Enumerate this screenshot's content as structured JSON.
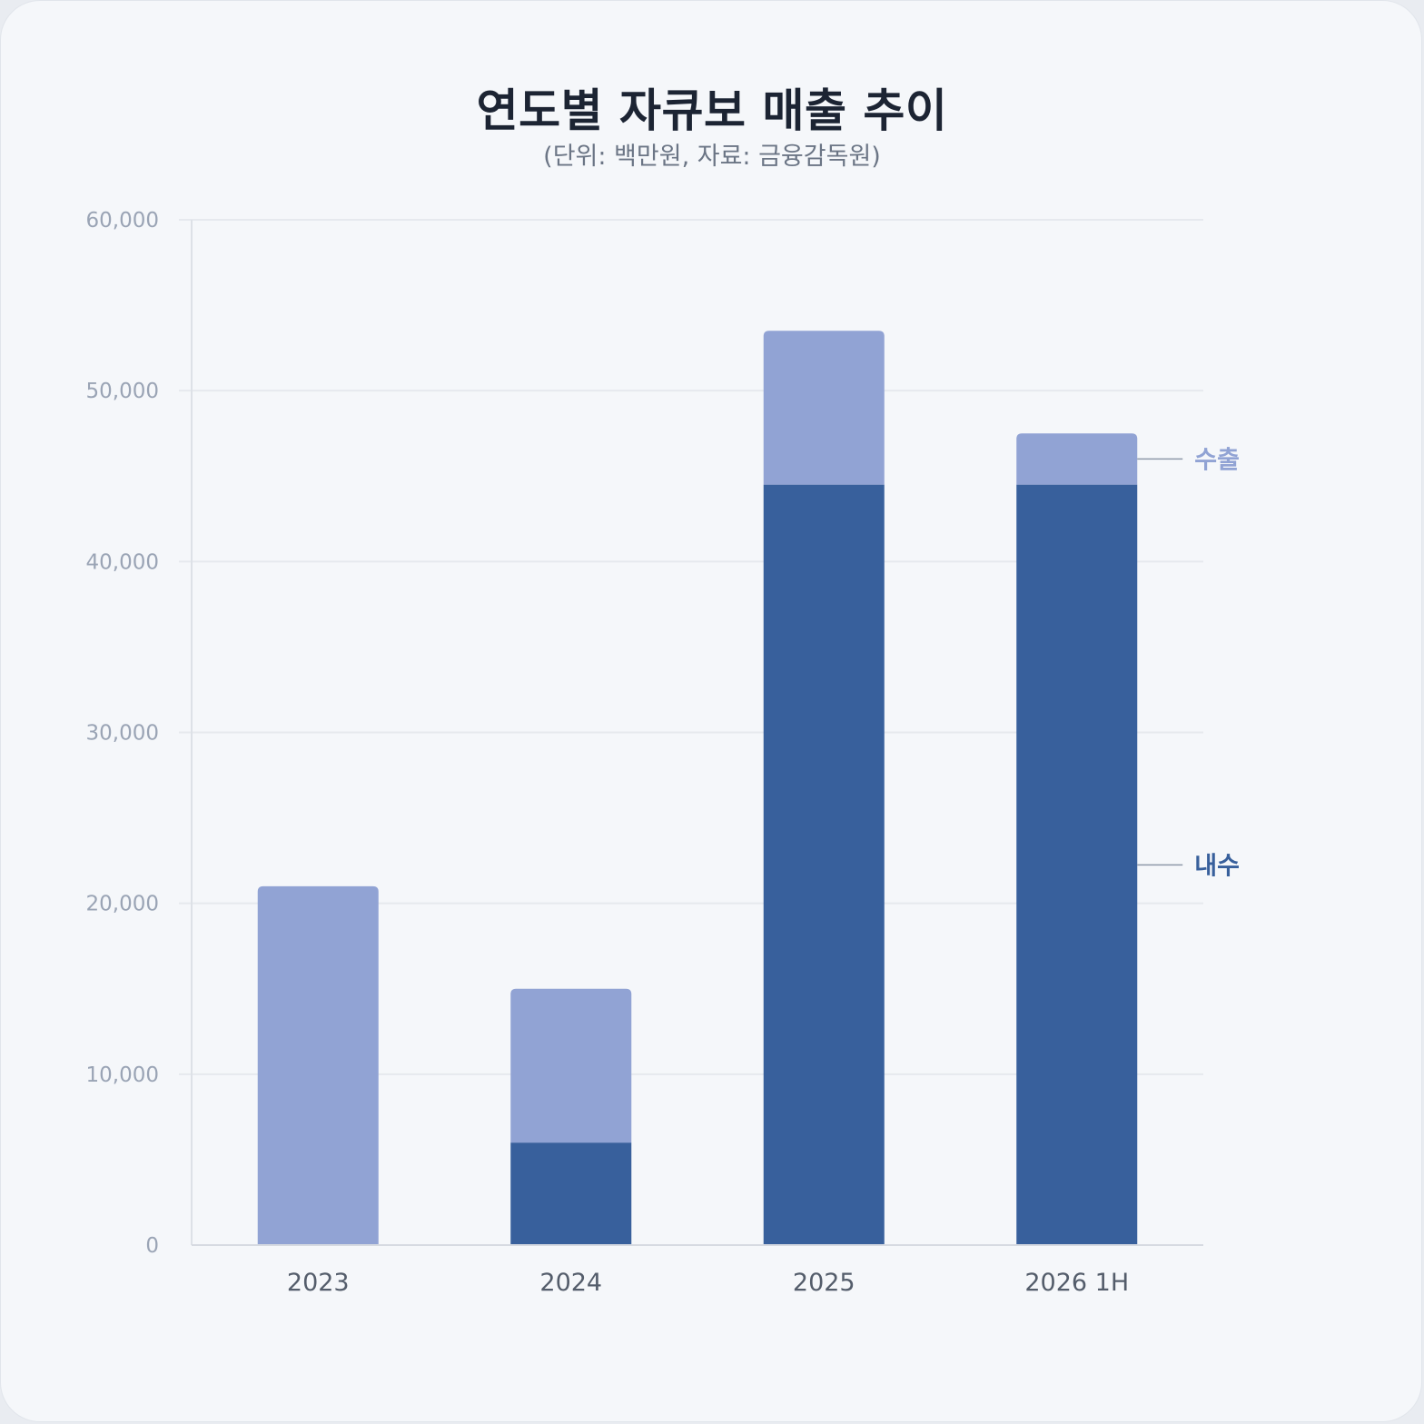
{
  "header": {
    "title": "연도별 자큐보 매출 추이",
    "subtitle": "(단위: 백만원, 자료: 금융감독원)"
  },
  "chart_data": {
    "type": "bar",
    "stacked": true,
    "title": "연도별 자큐보 매출 추이",
    "subtitle": "(단위: 백만원, 자료: 금융감독원)",
    "categories": [
      "2023",
      "2024",
      "2025",
      "2026 1H"
    ],
    "series": [
      {
        "name": "내수",
        "values": [
          0,
          6000,
          44500,
          44500
        ],
        "color": "#38609c"
      },
      {
        "name": "수출",
        "values": [
          21000,
          9000,
          9000,
          3000
        ],
        "color": "#91a3d4"
      }
    ],
    "ylim": [
      0,
      60000
    ],
    "yticks": [
      0,
      10000,
      20000,
      30000,
      40000,
      50000,
      60000
    ],
    "ytick_labels": [
      "0",
      "10,000",
      "20,000",
      "30,000",
      "40,000",
      "50,000",
      "60,000"
    ],
    "grid": true,
    "legend": "direct labels at right of last bar"
  }
}
